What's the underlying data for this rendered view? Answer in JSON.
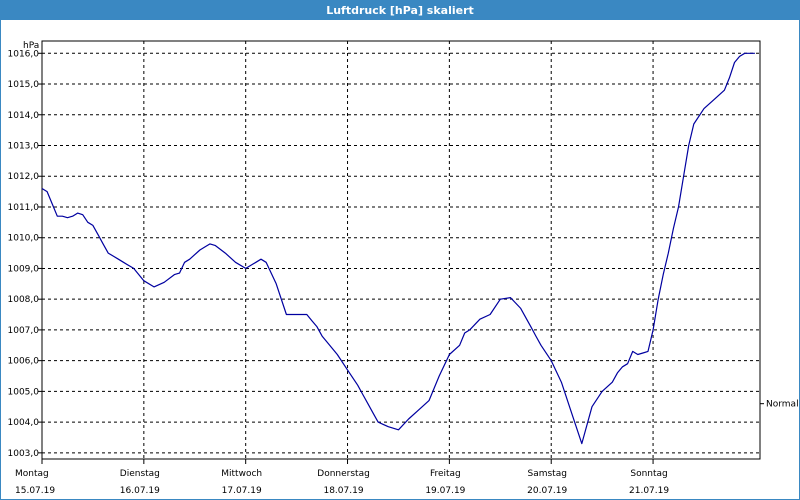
{
  "window": {
    "title": "Luftdruck [hPa] skaliert"
  },
  "chart_data": {
    "type": "line",
    "title": "Luftdruck [hPa] skaliert",
    "ylabel": "hPa",
    "ylim": [
      1002.8,
      1016.4
    ],
    "y_ticks": [
      "1003,0",
      "1004,0",
      "1005,0",
      "1006,0",
      "1007,0",
      "1008,0",
      "1009,0",
      "1010,0",
      "1011,0",
      "1012,0",
      "1013,0",
      "1014,0",
      "1015,0",
      "1016,0"
    ],
    "xlim": [
      0,
      7.05
    ],
    "x_ticks": [
      {
        "day": "Montag",
        "date": "15.07.19"
      },
      {
        "day": "Dienstag",
        "date": "16.07.19"
      },
      {
        "day": "Mittwoch",
        "date": "17.07.19"
      },
      {
        "day": "Donnerstag",
        "date": "18.07.19"
      },
      {
        "day": "Freitag",
        "date": "19.07.19"
      },
      {
        "day": "Samstag",
        "date": "20.07.19"
      },
      {
        "day": "Sonntag",
        "date": "21.07.19"
      }
    ],
    "reference_line": {
      "label": "Normal",
      "value": 1004.6
    },
    "grid": true,
    "series": [
      {
        "color": "#0000a0",
        "x": [
          0,
          0.05,
          0.1,
          0.15,
          0.2,
          0.25,
          0.3,
          0.35,
          0.4,
          0.45,
          0.5,
          0.55,
          0.6,
          0.65,
          0.7,
          0.75,
          0.8,
          0.85,
          0.9,
          1.0,
          1.1,
          1.2,
          1.3,
          1.35,
          1.4,
          1.45,
          1.5,
          1.55,
          1.6,
          1.65,
          1.7,
          1.8,
          1.9,
          2.0,
          2.1,
          2.15,
          2.2,
          2.3,
          2.4,
          2.5,
          2.6,
          2.65,
          2.7,
          2.75,
          2.8,
          2.9,
          3.0,
          3.1,
          3.15,
          3.2,
          3.25,
          3.3,
          3.4,
          3.5,
          3.6,
          3.7,
          3.8,
          3.9,
          4.0,
          4.1,
          4.15,
          4.2,
          4.3,
          4.4,
          4.5,
          4.6,
          4.7,
          4.8,
          4.85,
          4.9,
          5.0,
          5.1,
          5.2,
          5.3,
          5.4,
          5.5,
          5.6,
          5.65,
          5.7,
          5.75,
          5.8,
          5.85,
          5.9,
          5.95,
          6.0,
          6.05,
          6.1,
          6.15,
          6.2,
          6.25,
          6.3,
          6.35,
          6.4,
          6.5,
          6.6,
          6.7,
          6.75,
          6.8,
          6.85,
          6.9,
          6.95,
          7.0
        ],
        "values": [
          1011.6,
          1011.5,
          1011.1,
          1010.7,
          1010.7,
          1010.65,
          1010.7,
          1010.8,
          1010.75,
          1010.5,
          1010.4,
          1010.1,
          1009.8,
          1009.5,
          1009.4,
          1009.3,
          1009.2,
          1009.1,
          1009.0,
          1008.6,
          1008.4,
          1008.55,
          1008.8,
          1008.85,
          1009.2,
          1009.3,
          1009.45,
          1009.6,
          1009.7,
          1009.8,
          1009.75,
          1009.5,
          1009.2,
          1009.0,
          1009.2,
          1009.3,
          1009.2,
          1008.5,
          1007.5,
          1007.5,
          1007.5,
          1007.3,
          1007.1,
          1006.8,
          1006.6,
          1006.2,
          1005.7,
          1005.2,
          1004.9,
          1004.6,
          1004.3,
          1004.0,
          1003.85,
          1003.75,
          1004.1,
          1004.4,
          1004.7,
          1005.5,
          1006.2,
          1006.5,
          1006.9,
          1007.0,
          1007.35,
          1007.5,
          1008.0,
          1008.05,
          1007.7,
          1007.1,
          1006.8,
          1006.5,
          1006.0,
          1005.3,
          1004.3,
          1003.3,
          1004.5,
          1005.0,
          1005.3,
          1005.6,
          1005.8,
          1005.9,
          1006.3,
          1006.2,
          1006.25,
          1006.3,
          1007.0,
          1008.0,
          1008.8,
          1009.5,
          1010.3,
          1011.0,
          1012.0,
          1013.0,
          1013.7,
          1014.2,
          1014.5,
          1014.8,
          1015.2,
          1015.7,
          1015.9,
          1016.0,
          1016.0,
          1016.0
        ]
      }
    ]
  }
}
